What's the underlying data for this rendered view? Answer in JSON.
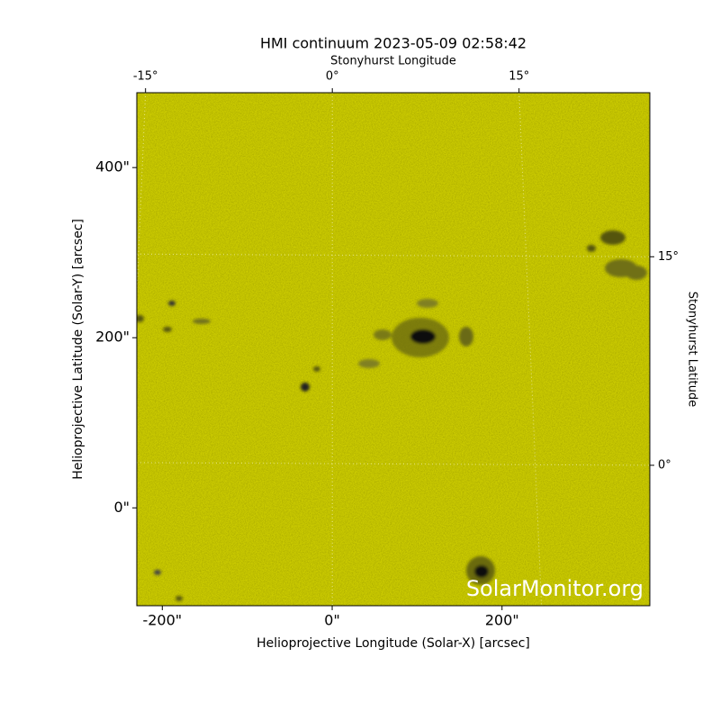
{
  "chart_data": {
    "type": "image",
    "title": "HMI continuum 2023-05-09 02:58:42",
    "xlabel": "Helioprojective Longitude (Solar-X) [arcsec]",
    "ylabel": "Helioprojective Latitude (Solar-Y) [arcsec]",
    "x2label": "Stonyhurst Longitude",
    "y2label": "Stonyhurst Latitude",
    "watermark": "SolarMonitor.org",
    "xlim": [
      -230,
      374
    ],
    "ylim": [
      -115,
      488
    ],
    "xticks": [
      {
        "value": -200,
        "label": "-200\""
      },
      {
        "value": 0,
        "label": "0\""
      },
      {
        "value": 200,
        "label": "200\""
      }
    ],
    "yticks": [
      {
        "value": 0,
        "label": "0\""
      },
      {
        "value": 200,
        "label": "200\""
      },
      {
        "value": 400,
        "label": "400\""
      }
    ],
    "x2lim": [
      -15.7,
      25.5
    ],
    "x2ticks": [
      {
        "value": -15,
        "label": "-15°"
      },
      {
        "value": 0,
        "label": "0°"
      },
      {
        "value": 15,
        "label": "15°"
      }
    ],
    "y2lim": [
      -10.1,
      26.8
    ],
    "y2ticks": [
      {
        "value": 0,
        "label": "0°"
      },
      {
        "value": 15,
        "label": "15°"
      }
    ],
    "color": "#cccc00"
  }
}
